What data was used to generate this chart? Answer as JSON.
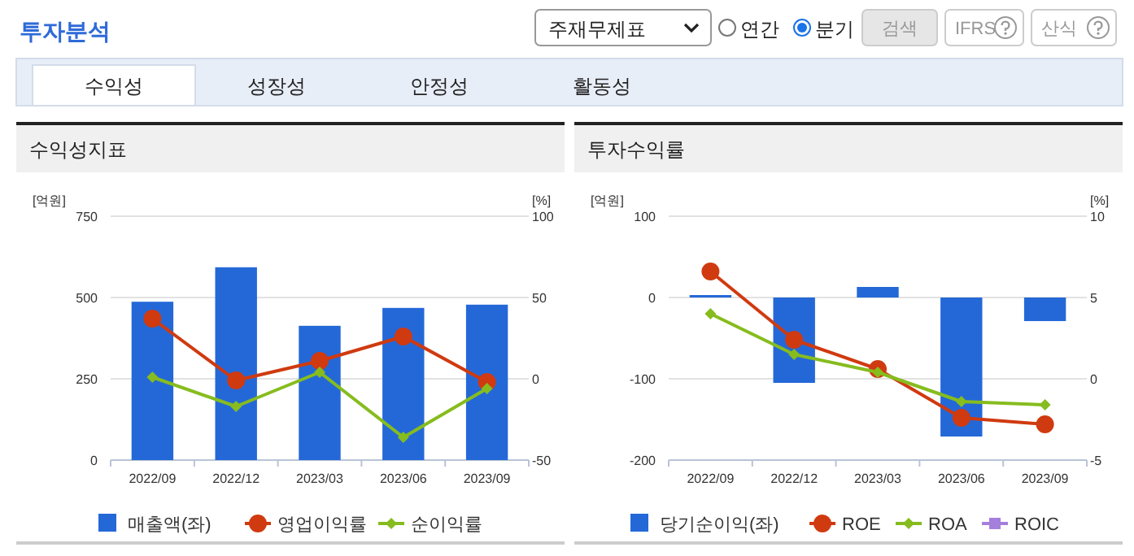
{
  "chart_data": [
    {
      "type": "other",
      "title": "투자분석",
      "annotations": [
        "주재무제표",
        "연간",
        "분기",
        "검색",
        "IFRS",
        "산식",
        "수익성",
        "성장성",
        "안정성",
        "활동성"
      ]
    },
    {
      "type": "bar",
      "title": "수익성지표",
      "ylabel": "[억원]",
      "y2label": "[%]",
      "categories": [
        "2022/09",
        "2022/12",
        "2023/03",
        "2023/06",
        "2023/09"
      ],
      "ylim": [
        0,
        750
      ],
      "yticks": [
        0,
        250,
        500,
        750
      ],
      "y2lim": [
        -50,
        100
      ],
      "y2ticks": [
        -50,
        0,
        50,
        100
      ],
      "grid": "y",
      "legend": "bottom",
      "series": [
        {
          "name": "매출액(좌)",
          "type": "bar",
          "color": "#2468d8",
          "values": [
            487,
            593,
            413,
            468,
            478
          ]
        },
        {
          "name": "영업이익률",
          "type": "line",
          "axis": "y2",
          "marker": "circle",
          "color": "#d03a10",
          "values": [
            37,
            -1,
            11,
            26,
            -2
          ]
        },
        {
          "name": "순이익률",
          "type": "line",
          "axis": "y2",
          "marker": "diamond",
          "color": "#86bc1e",
          "values": [
            1,
            -17,
            4,
            -36,
            -6
          ]
        }
      ]
    },
    {
      "type": "bar",
      "title": "투자수익률",
      "ylabel": "[억원]",
      "y2label": "[%]",
      "categories": [
        "2022/09",
        "2022/12",
        "2023/03",
        "2023/06",
        "2023/09"
      ],
      "ylim": [
        -200,
        100
      ],
      "yticks": [
        -200,
        -100,
        0,
        100
      ],
      "y2lim": [
        -5,
        10
      ],
      "y2ticks": [
        -5,
        0,
        5,
        10
      ],
      "grid": "y",
      "legend": "bottom",
      "series": [
        {
          "name": "당기순이익(좌)",
          "type": "bar",
          "color": "#2468d8",
          "values": [
            3,
            -105,
            13,
            -171,
            -29
          ]
        },
        {
          "name": "ROE",
          "type": "line",
          "axis": "y2",
          "marker": "circle",
          "color": "#d03a10",
          "values": [
            6.6,
            2.4,
            0.6,
            -2.4,
            -2.8
          ]
        },
        {
          "name": "ROA",
          "type": "line",
          "axis": "y2",
          "marker": "diamond",
          "color": "#86bc1e",
          "values": [
            4.0,
            1.5,
            0.4,
            -1.4,
            -1.6
          ]
        },
        {
          "name": "ROIC",
          "type": "line",
          "axis": "y2",
          "marker": "square",
          "color": "#a57fdc",
          "values": [
            null,
            null,
            null,
            null,
            null
          ]
        }
      ]
    }
  ]
}
